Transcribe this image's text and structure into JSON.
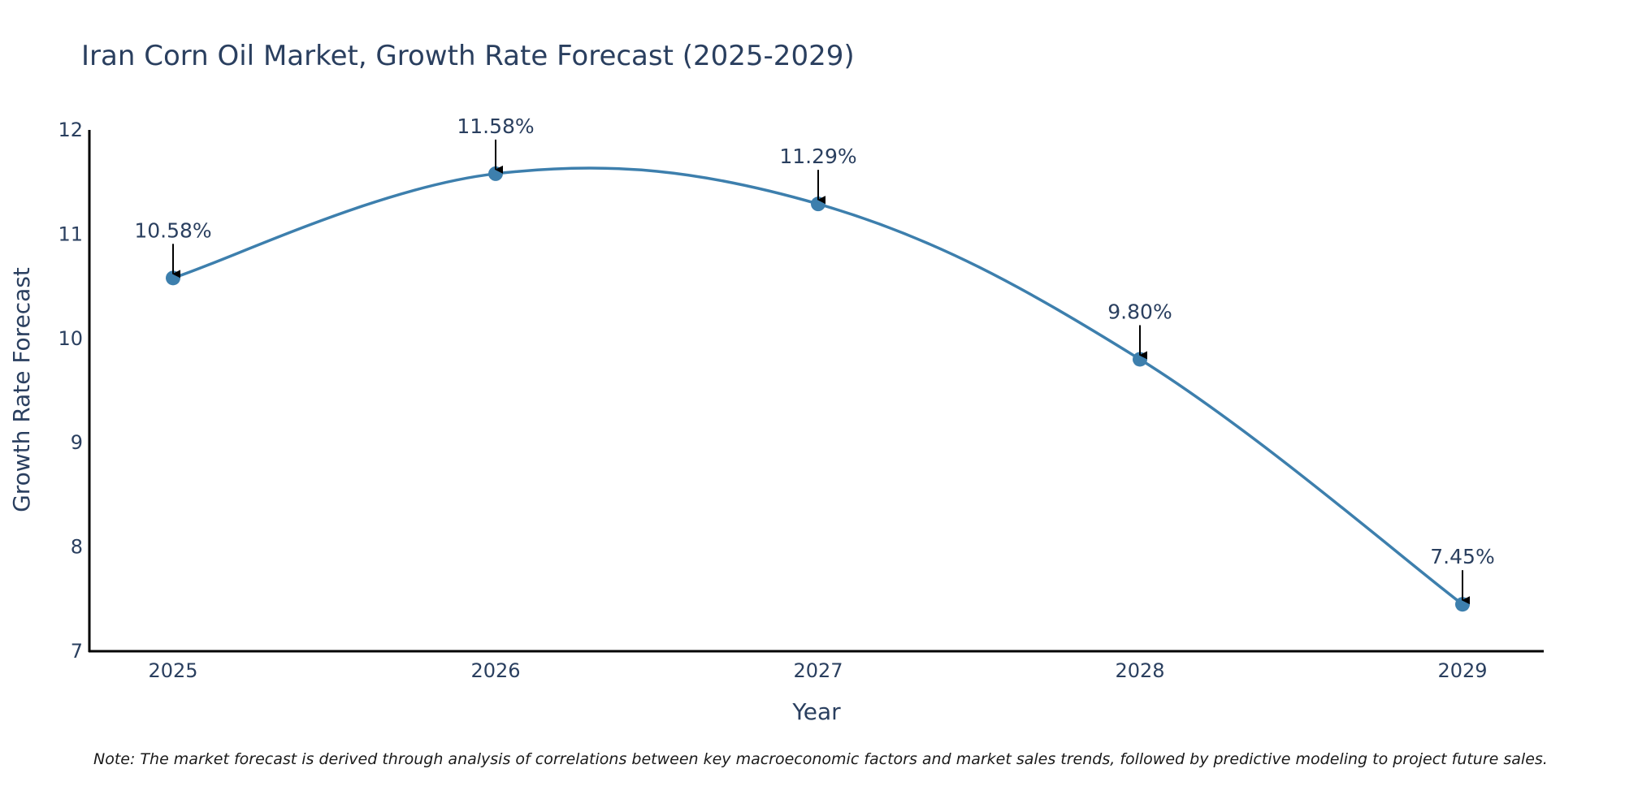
{
  "chart_data": {
    "type": "line",
    "title": "Iran Corn Oil Market, Growth Rate Forecast (2025-2029)",
    "xlabel": "Year",
    "ylabel": "Growth Rate Forecast",
    "categories": [
      "2025",
      "2026",
      "2027",
      "2028",
      "2029"
    ],
    "values": [
      10.58,
      11.58,
      11.29,
      9.8,
      7.45
    ],
    "data_labels": [
      "10.58%",
      "11.58%",
      "11.29%",
      "9.80%",
      "7.45%"
    ],
    "ylim": [
      7,
      12
    ],
    "yticks": [
      7,
      8,
      9,
      10,
      11,
      12
    ],
    "line_shape": "spline",
    "line_color": "#3d7fad",
    "marker_color": "#3d7fad",
    "arrow_color": "#000000",
    "grid": false,
    "note": "Note: The market forecast is derived through analysis of correlations between key macroeconomic factors and market sales trends, followed by predictive modeling to project future sales."
  }
}
